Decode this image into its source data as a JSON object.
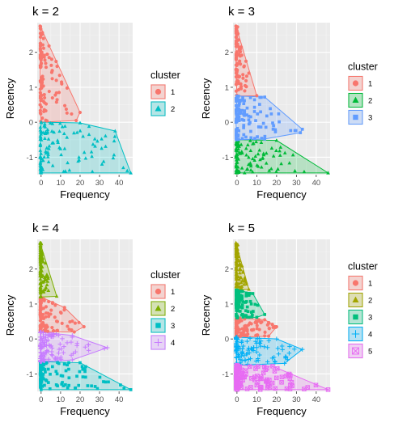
{
  "chart_data": [
    {
      "type": "scatter",
      "title": "k = 2",
      "xlabel": "Frequency",
      "ylabel": "Recency",
      "xlim": [
        -2,
        47
      ],
      "ylim": [
        -1.5,
        2.85
      ],
      "x_ticks": [
        0,
        10,
        20,
        30,
        40
      ],
      "y_ticks": [
        -1,
        0,
        1,
        2
      ],
      "grid": true,
      "legend_title": "cluster",
      "legend_position": "right",
      "clusters": [
        {
          "name": "1",
          "color": "#F8766D",
          "shape": "circle",
          "y_range": [
            0,
            2.75
          ],
          "hull": [
            [
              -0.5,
              2.75
            ],
            [
              20,
              0.28
            ],
            [
              18,
              0.05
            ],
            [
              0,
              0
            ],
            [
              -0.5,
              0.5
            ]
          ]
        },
        {
          "name": "2",
          "color": "#00BFC4",
          "shape": "triangle",
          "y_range": [
            -1.45,
            0
          ],
          "hull": [
            [
              0,
              0
            ],
            [
              20,
              -0.02
            ],
            [
              38,
              -0.25
            ],
            [
              46,
              -1.45
            ],
            [
              0,
              -1.45
            ],
            [
              -0.5,
              -1
            ]
          ]
        }
      ]
    },
    {
      "type": "scatter",
      "title": "k = 3",
      "xlabel": "Frequency",
      "ylabel": "Recency",
      "xlim": [
        -2,
        47
      ],
      "ylim": [
        -1.5,
        2.85
      ],
      "x_ticks": [
        0,
        10,
        20,
        30,
        40
      ],
      "y_ticks": [
        -1,
        0,
        1,
        2
      ],
      "grid": true,
      "legend_title": "cluster",
      "legend_position": "right",
      "clusters": [
        {
          "name": "1",
          "color": "#F8766D",
          "shape": "circle",
          "y_range": [
            0.75,
            2.75
          ],
          "hull": [
            [
              -0.5,
              2.75
            ],
            [
              10,
              0.76
            ],
            [
              0,
              0.75
            ],
            [
              -0.5,
              1.5
            ]
          ]
        },
        {
          "name": "2",
          "color": "#00BA38",
          "shape": "triangle",
          "y_range": [
            -1.45,
            -0.5
          ],
          "hull": [
            [
              0,
              -0.5
            ],
            [
              20,
              -0.52
            ],
            [
              46,
              -1.45
            ],
            [
              0,
              -1.45
            ],
            [
              -0.5,
              -1
            ]
          ]
        },
        {
          "name": "3",
          "color": "#619CFF",
          "shape": "square",
          "y_range": [
            -0.5,
            0.75
          ],
          "hull": [
            [
              0,
              0.75
            ],
            [
              14,
              0.72
            ],
            [
              33,
              -0.2
            ],
            [
              32,
              -0.3
            ],
            [
              14,
              -0.48
            ],
            [
              0,
              -0.5
            ],
            [
              -0.5,
              0
            ]
          ]
        }
      ]
    },
    {
      "type": "scatter",
      "title": "k = 4",
      "xlabel": "Frequency",
      "ylabel": "Recency",
      "xlim": [
        -2,
        47
      ],
      "ylim": [
        -1.5,
        2.85
      ],
      "x_ticks": [
        0,
        10,
        20,
        30,
        40
      ],
      "y_ticks": [
        -1,
        0,
        1,
        2
      ],
      "grid": true,
      "legend_title": "cluster",
      "legend_position": "right",
      "clusters": [
        {
          "name": "1",
          "color": "#F8766D",
          "shape": "circle",
          "y_range": [
            0.2,
            1.2
          ],
          "hull": [
            [
              0,
              1.2
            ],
            [
              12,
              0.9
            ],
            [
              22,
              0.35
            ],
            [
              17,
              0.2
            ],
            [
              0,
              0.2
            ],
            [
              -0.5,
              0.7
            ]
          ]
        },
        {
          "name": "2",
          "color": "#7CAE00",
          "shape": "triangle",
          "y_range": [
            1.2,
            2.75
          ],
          "hull": [
            [
              -0.5,
              2.75
            ],
            [
              8,
              1.22
            ],
            [
              0,
              1.2
            ],
            [
              -0.5,
              1.8
            ]
          ]
        },
        {
          "name": "3",
          "color": "#00BFC4",
          "shape": "square",
          "y_range": [
            -1.45,
            -0.65
          ],
          "hull": [
            [
              0,
              -0.65
            ],
            [
              20,
              -0.68
            ],
            [
              46,
              -1.45
            ],
            [
              0,
              -1.45
            ],
            [
              -0.5,
              -1
            ]
          ]
        },
        {
          "name": "4",
          "color": "#C77CFF",
          "shape": "plus",
          "y_range": [
            -0.65,
            0.2
          ],
          "hull": [
            [
              0,
              0.2
            ],
            [
              16,
              0.1
            ],
            [
              34,
              -0.25
            ],
            [
              16,
              -0.6
            ],
            [
              0,
              -0.65
            ],
            [
              -0.5,
              -0.2
            ]
          ]
        }
      ]
    },
    {
      "type": "scatter",
      "title": "k = 5",
      "xlabel": "Frequency",
      "ylabel": "Recency",
      "xlim": [
        -2,
        47
      ],
      "ylim": [
        -1.5,
        2.85
      ],
      "x_ticks": [
        0,
        10,
        20,
        30,
        40
      ],
      "y_ticks": [
        -1,
        0,
        1,
        2
      ],
      "grid": true,
      "legend_title": "cluster",
      "legend_position": "right",
      "clusters": [
        {
          "name": "1",
          "color": "#F8766D",
          "shape": "circle",
          "y_range": [
            0.05,
            0.6
          ],
          "hull": [
            [
              0,
              0.6
            ],
            [
              14,
              0.55
            ],
            [
              20,
              0.35
            ],
            [
              16,
              0.08
            ],
            [
              0,
              0.05
            ],
            [
              -0.5,
              0.3
            ]
          ]
        },
        {
          "name": "2",
          "color": "#A3A500",
          "shape": "triangle",
          "y_range": [
            1.4,
            2.75
          ],
          "hull": [
            [
              -0.5,
              2.75
            ],
            [
              6,
              1.42
            ],
            [
              0,
              1.4
            ],
            [
              -0.5,
              2
            ]
          ]
        },
        {
          "name": "3",
          "color": "#00BF7D",
          "shape": "square",
          "y_range": [
            0.6,
            1.4
          ],
          "hull": [
            [
              0,
              1.4
            ],
            [
              8,
              1.3
            ],
            [
              14,
              0.7
            ],
            [
              10,
              0.62
            ],
            [
              0,
              0.6
            ],
            [
              -0.5,
              1
            ]
          ]
        },
        {
          "name": "4",
          "color": "#00B0F6",
          "shape": "plus",
          "y_range": [
            -0.75,
            0.05
          ],
          "hull": [
            [
              0,
              0.05
            ],
            [
              20,
              0.0
            ],
            [
              33,
              -0.3
            ],
            [
              24,
              -0.7
            ],
            [
              0,
              -0.75
            ],
            [
              -0.5,
              -0.35
            ]
          ]
        },
        {
          "name": "5",
          "color": "#E76BF3",
          "shape": "boxx",
          "y_range": [
            -1.45,
            -0.75
          ],
          "hull": [
            [
              0,
              -0.75
            ],
            [
              18,
              -0.78
            ],
            [
              46,
              -1.45
            ],
            [
              0,
              -1.45
            ],
            [
              -0.5,
              -1.1
            ]
          ]
        }
      ]
    }
  ]
}
